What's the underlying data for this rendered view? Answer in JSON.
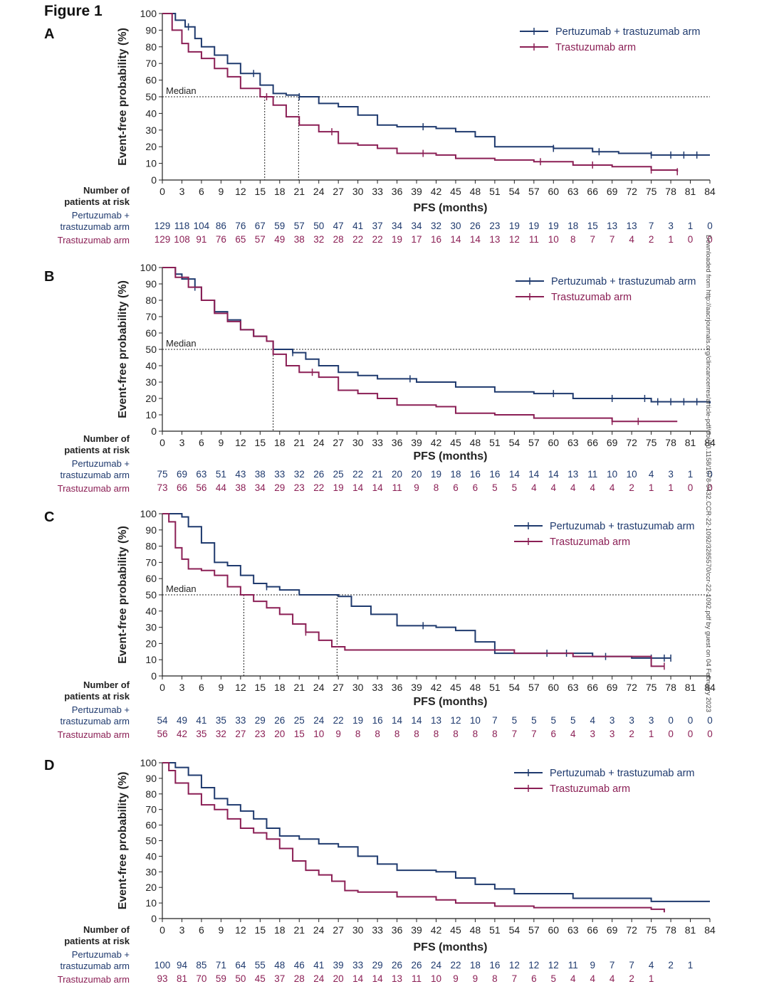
{
  "figure_title": "Figure 1",
  "side_watermark": "Downloaded from http://aacrjournals.org/clincancerres/article-pdf/doi/10.1158/1078-0432.CCR-22-1092/3285570/ccr-22-1092.pdf by guest on 04 February 2023",
  "colors": {
    "pertuzumab": "#1f3a6e",
    "trastuzumab": "#8b1f55",
    "axis": "#222222"
  },
  "chart_data": [
    {
      "panel": "A",
      "type": "line",
      "xlabel": "PFS (months)",
      "ylabel": "Event-free probability (%)",
      "xlim": [
        0,
        84
      ],
      "ylim": [
        0,
        100
      ],
      "x_ticks": [
        "0",
        "3",
        "6",
        "9",
        "12",
        "15",
        "18",
        "21",
        "24",
        "27",
        "30",
        "33",
        "36",
        "39",
        "42",
        "45",
        "48",
        "51",
        "54",
        "57",
        "60",
        "63",
        "66",
        "69",
        "72",
        "75",
        "78",
        "81",
        "84"
      ],
      "y_ticks": [
        "0",
        "10",
        "20",
        "30",
        "40",
        "50",
        "60",
        "70",
        "80",
        "90",
        "100"
      ],
      "median_label": "Median",
      "median_y": 50,
      "medians_x": [
        15.7,
        20.9
      ],
      "legend": [
        "Pertuzumab + trastuzumab arm",
        "Trastuzumab arm"
      ],
      "risk_header": [
        "Number of",
        "patients at risk"
      ],
      "row_labels": [
        [
          "Pertuzumab +",
          "trastuzumab arm"
        ],
        [
          "Trastuzumab arm"
        ]
      ],
      "series": [
        {
          "name": "Pertuzumab + trastuzumab arm",
          "x": [
            0,
            2,
            3.5,
            5,
            6,
            8,
            10,
            12,
            15,
            17,
            19,
            21,
            24,
            27,
            30,
            33,
            36,
            42,
            45,
            48,
            51,
            60,
            66,
            70,
            75,
            80,
            84
          ],
          "y": [
            100,
            96,
            92,
            85,
            80,
            75,
            70,
            64,
            57,
            52,
            51,
            50,
            46,
            44,
            39,
            33,
            32,
            31,
            29,
            26,
            20,
            19,
            17,
            16,
            15,
            15,
            15
          ],
          "censor_x": [
            4,
            14,
            21,
            40,
            60,
            67,
            75,
            78,
            80,
            82
          ]
        },
        {
          "name": "Trastuzumab arm",
          "x": [
            0,
            1.5,
            3,
            4,
            6,
            8,
            10,
            12,
            15,
            17,
            19,
            21,
            24,
            27,
            30,
            33,
            36,
            42,
            45,
            48,
            51,
            57,
            63,
            69,
            75,
            79
          ],
          "y": [
            100,
            90,
            82,
            77,
            73,
            67,
            62,
            55,
            50,
            45,
            38,
            33,
            29,
            22,
            21,
            19,
            16,
            15,
            13,
            13,
            12,
            11,
            9,
            8,
            6,
            5
          ],
          "censor_x": [
            16,
            26,
            40,
            58,
            66,
            75,
            79
          ]
        }
      ],
      "at_risk": {
        "times": [
          0,
          3,
          6,
          9,
          12,
          15,
          18,
          21,
          24,
          27,
          30,
          33,
          36,
          39,
          42,
          45,
          48,
          51,
          54,
          57,
          60,
          63,
          66,
          69,
          72,
          75,
          78,
          81,
          84
        ],
        "pertuzumab": [
          "129",
          "118",
          "104",
          "86",
          "76",
          "67",
          "59",
          "57",
          "50",
          "47",
          "41",
          "37",
          "34",
          "34",
          "32",
          "30",
          "26",
          "23",
          "19",
          "19",
          "19",
          "18",
          "15",
          "13",
          "13",
          "7",
          "3",
          "1",
          "0"
        ],
        "trastuzumab": [
          "129",
          "108",
          "91",
          "76",
          "65",
          "57",
          "49",
          "38",
          "32",
          "28",
          "22",
          "22",
          "19",
          "17",
          "16",
          "14",
          "14",
          "13",
          "12",
          "11",
          "10",
          "8",
          "7",
          "7",
          "4",
          "2",
          "1",
          "0",
          "0"
        ]
      }
    },
    {
      "panel": "B",
      "type": "line",
      "xlabel": "PFS (months)",
      "ylabel": "Event-free probability (%)",
      "xlim": [
        0,
        84
      ],
      "ylim": [
        0,
        100
      ],
      "x_ticks": [
        "0",
        "3",
        "6",
        "9",
        "12",
        "15",
        "18",
        "21",
        "24",
        "27",
        "30",
        "33",
        "36",
        "39",
        "42",
        "45",
        "48",
        "51",
        "54",
        "57",
        "60",
        "63",
        "66",
        "69",
        "72",
        "75",
        "78",
        "81",
        "84"
      ],
      "y_ticks": [
        "0",
        "10",
        "20",
        "30",
        "40",
        "50",
        "60",
        "70",
        "80",
        "90",
        "100"
      ],
      "median_label": "Median",
      "median_y": 50,
      "medians_x": [
        17.0
      ],
      "legend": [
        "Pertuzumab + trastuzumab arm",
        "Trastuzumab arm"
      ],
      "risk_header": [
        "Number  of",
        "patients at risk"
      ],
      "row_labels": [
        [
          "Pertuzumab +",
          "trastuzumab arm"
        ],
        [
          "Trastuzumab arm"
        ]
      ],
      "series": [
        {
          "name": "Pertuzumab + trastuzumab arm",
          "x": [
            0,
            2,
            3,
            5,
            6,
            8,
            10,
            12,
            14,
            16,
            17,
            20,
            22,
            24,
            27,
            30,
            33,
            39,
            45,
            51,
            57,
            63,
            70,
            75,
            84
          ],
          "y": [
            100,
            96,
            93,
            88,
            80,
            73,
            68,
            62,
            58,
            55,
            50,
            48,
            44,
            40,
            36,
            34,
            32,
            30,
            27,
            24,
            23,
            20,
            20,
            18,
            17
          ],
          "censor_x": [
            5,
            20,
            38,
            60,
            69,
            74,
            76,
            78,
            80,
            82
          ]
        },
        {
          "name": "Trastuzumab arm",
          "x": [
            0,
            2,
            4,
            6,
            8,
            10,
            12,
            14,
            16,
            17,
            19,
            21,
            24,
            27,
            30,
            33,
            36,
            42,
            45,
            51,
            57,
            63,
            69,
            72,
            79
          ],
          "y": [
            100,
            94,
            88,
            80,
            72,
            67,
            62,
            58,
            55,
            47,
            40,
            36,
            33,
            25,
            23,
            20,
            16,
            15,
            11,
            10,
            8,
            8,
            6,
            6,
            6
          ],
          "censor_x": [
            23,
            69,
            73
          ]
        }
      ],
      "at_risk": {
        "times": [
          0,
          3,
          6,
          9,
          12,
          15,
          18,
          21,
          24,
          27,
          30,
          33,
          36,
          39,
          42,
          45,
          48,
          51,
          54,
          57,
          60,
          63,
          66,
          69,
          72,
          75,
          78,
          81,
          84
        ],
        "pertuzumab": [
          "75",
          "69",
          "63",
          "51",
          "43",
          "38",
          "33",
          "32",
          "26",
          "25",
          "22",
          "21",
          "20",
          "20",
          "19",
          "18",
          "16",
          "16",
          "14",
          "14",
          "14",
          "13",
          "11",
          "10",
          "10",
          "4",
          "3",
          "1",
          "0"
        ],
        "trastuzumab": [
          "73",
          "66",
          "56",
          "44",
          "38",
          "34",
          "29",
          "23",
          "22",
          "19",
          "14",
          "14",
          "11",
          "9",
          "8",
          "6",
          "6",
          "5",
          "5",
          "4",
          "4",
          "4",
          "4",
          "4",
          "2",
          "1",
          "1",
          "0",
          "0"
        ]
      }
    },
    {
      "panel": "C",
      "type": "line",
      "xlabel": "PFS (months)",
      "ylabel": "Event-free probability (%)",
      "xlim": [
        0,
        84
      ],
      "ylim": [
        0,
        100
      ],
      "x_ticks": [
        "0",
        "3",
        "6",
        "9",
        "12",
        "15",
        "18",
        "21",
        "24",
        "27",
        "30",
        "33",
        "36",
        "39",
        "42",
        "45",
        "48",
        "51",
        "54",
        "57",
        "60",
        "63",
        "66",
        "69",
        "72",
        "75",
        "78",
        "81",
        "84"
      ],
      "y_ticks": [
        "0",
        "10",
        "20",
        "30",
        "40",
        "50",
        "60",
        "70",
        "80",
        "90",
        "100"
      ],
      "median_label": "Median",
      "median_y": 50,
      "medians_x": [
        12.5,
        26.8
      ],
      "legend": [
        "Pertuzumab + trastuzumab arm",
        "Trastuzumab arm"
      ],
      "risk_header": [
        "Number  of",
        "patients at risk"
      ],
      "row_labels": [
        [
          "Pertuzumab +",
          "trastuzumab arm"
        ],
        [
          "Trastuzumab arm"
        ]
      ],
      "series": [
        {
          "name": "Pertuzumab + trastuzumab arm",
          "x": [
            0,
            2,
            3,
            4,
            6,
            8,
            10,
            12,
            14,
            16,
            18,
            21,
            24,
            27,
            29,
            32,
            36,
            42,
            45,
            48,
            51,
            57,
            60,
            66,
            72,
            78
          ],
          "y": [
            100,
            100,
            98,
            92,
            82,
            70,
            68,
            62,
            57,
            55,
            53,
            50,
            50,
            49,
            43,
            38,
            31,
            30,
            28,
            21,
            14,
            14,
            14,
            12,
            11,
            11
          ],
          "censor_x": [
            16,
            40,
            59,
            62,
            68,
            75,
            77,
            78
          ]
        },
        {
          "name": "Trastuzumab arm",
          "x": [
            0,
            1,
            2,
            3,
            4,
            6,
            8,
            10,
            12,
            14,
            16,
            18,
            20,
            22,
            24,
            26,
            28,
            30,
            33,
            36,
            42,
            48,
            54,
            60,
            63,
            66,
            75,
            77
          ],
          "y": [
            100,
            95,
            79,
            72,
            66,
            65,
            62,
            55,
            50,
            46,
            42,
            38,
            32,
            27,
            22,
            18,
            16,
            16,
            16,
            16,
            16,
            16,
            14,
            14,
            12,
            12,
            6,
            6
          ],
          "censor_x": [
            22,
            77
          ]
        }
      ],
      "at_risk": {
        "times": [
          0,
          3,
          6,
          9,
          12,
          15,
          18,
          21,
          24,
          27,
          30,
          33,
          36,
          39,
          42,
          45,
          48,
          51,
          54,
          57,
          60,
          63,
          66,
          69,
          72,
          75,
          78,
          81,
          84
        ],
        "pertuzumab": [
          "54",
          "49",
          "41",
          "35",
          "33",
          "29",
          "26",
          "25",
          "24",
          "22",
          "19",
          "16",
          "14",
          "14",
          "13",
          "12",
          "10",
          "7",
          "5",
          "5",
          "5",
          "5",
          "4",
          "3",
          "3",
          "3",
          "0",
          "0",
          "0"
        ],
        "trastuzumab": [
          "56",
          "42",
          "35",
          "32",
          "27",
          "23",
          "20",
          "15",
          "10",
          "9",
          "8",
          "8",
          "8",
          "8",
          "8",
          "8",
          "8",
          "8",
          "7",
          "7",
          "6",
          "4",
          "3",
          "3",
          "2",
          "1",
          "0",
          "0",
          "0"
        ]
      }
    },
    {
      "panel": "D",
      "type": "line",
      "xlabel": "PFS (months)",
      "ylabel": "Event-free probability (%)",
      "xlim": [
        0,
        84
      ],
      "ylim": [
        0,
        100
      ],
      "x_ticks": [
        "0",
        "3",
        "6",
        "9",
        "12",
        "15",
        "18",
        "21",
        "24",
        "27",
        "30",
        "33",
        "36",
        "39",
        "42",
        "45",
        "48",
        "51",
        "54",
        "57",
        "60",
        "63",
        "66",
        "69",
        "72",
        "75",
        "78",
        "81",
        "84"
      ],
      "y_ticks": [
        "0",
        "10",
        "20",
        "30",
        "40",
        "50",
        "60",
        "70",
        "80",
        "90",
        "100"
      ],
      "median_label": "",
      "median_y": 50,
      "medians_x": [],
      "legend": [
        "Pertuzumab + trastuzumab arm",
        "Trastuzumab arm"
      ],
      "risk_header": [
        "Number of",
        "patients at risk"
      ],
      "row_labels": [
        [
          "Pertuzumab +",
          "trastuzumab arm"
        ],
        [
          "Trastuzumab arm"
        ]
      ],
      "series": [
        {
          "name": "Pertuzumab + trastuzumab arm",
          "x": [
            0,
            2,
            4,
            6,
            8,
            10,
            12,
            14,
            16,
            18,
            21,
            24,
            27,
            30,
            33,
            36,
            42,
            45,
            48,
            51,
            54,
            63,
            70,
            75,
            84
          ],
          "y": [
            100,
            97,
            92,
            84,
            77,
            73,
            69,
            64,
            58,
            53,
            51,
            48,
            46,
            40,
            35,
            31,
            30,
            26,
            22,
            19,
            16,
            13,
            13,
            11,
            11
          ],
          "censor_x": []
        },
        {
          "name": "Trastuzumab arm",
          "x": [
            0,
            1,
            2,
            4,
            6,
            8,
            10,
            12,
            14,
            16,
            18,
            20,
            22,
            24,
            26,
            28,
            30,
            33,
            36,
            42,
            45,
            51,
            57,
            63,
            69,
            75,
            77
          ],
          "y": [
            100,
            95,
            87,
            80,
            73,
            70,
            64,
            58,
            55,
            51,
            45,
            37,
            31,
            28,
            24,
            18,
            17,
            17,
            14,
            12,
            10,
            8,
            7,
            7,
            7,
            6,
            4
          ],
          "censor_x": []
        }
      ],
      "at_risk": {
        "times": [
          0,
          3,
          6,
          9,
          12,
          15,
          18,
          21,
          24,
          27,
          30,
          33,
          36,
          39,
          42,
          45,
          48,
          51,
          54,
          57,
          60,
          63,
          66,
          69,
          72,
          75,
          78,
          81,
          84
        ],
        "pertuzumab": [
          "100",
          "94",
          "85",
          "71",
          "64",
          "55",
          "48",
          "46",
          "41",
          "39",
          "33",
          "29",
          "26",
          "26",
          "24",
          "22",
          "18",
          "16",
          "12",
          "12",
          "12",
          "11",
          "9",
          "7",
          "7",
          "4",
          "2",
          "1",
          ""
        ],
        "trastuzumab": [
          "93",
          "81",
          "70",
          "59",
          "50",
          "45",
          "37",
          "28",
          "24",
          "20",
          "14",
          "14",
          "13",
          "11",
          "10",
          "9",
          "9",
          "8",
          "7",
          "6",
          "5",
          "4",
          "4",
          "4",
          "2",
          "1",
          "",
          "",
          ""
        ]
      }
    }
  ]
}
